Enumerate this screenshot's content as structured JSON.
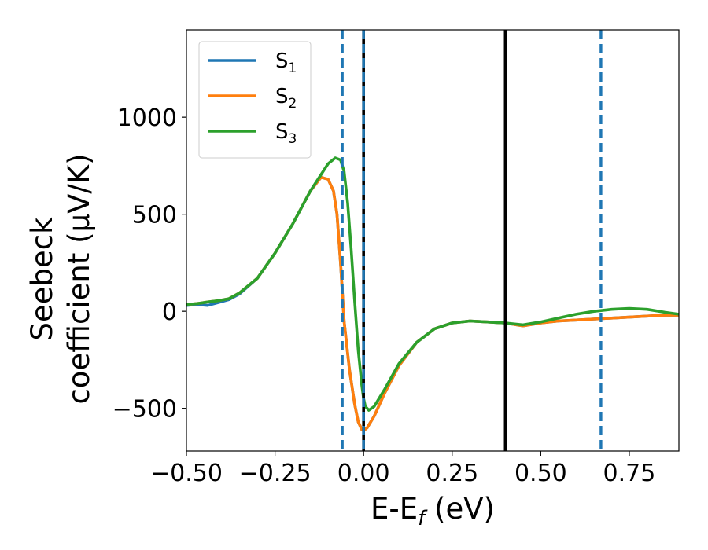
{
  "chart_data": {
    "type": "line",
    "xlabel": "E-E",
    "xlabel_subscript": "f",
    "xlabel_unit": " (eV)",
    "ylabel_line1": "Seebeck",
    "ylabel_line2": "coefficient  (μV/K)",
    "xlim": [
      -0.5,
      0.89
    ],
    "ylim": [
      -720,
      1450
    ],
    "x_ticks": [
      -0.5,
      -0.25,
      0.0,
      0.25,
      0.5,
      0.75
    ],
    "x_tick_labels": [
      "−0.50",
      "−0.25",
      "0.00",
      "0.25",
      "0.50",
      "0.75"
    ],
    "y_ticks": [
      -500,
      0,
      500,
      1000
    ],
    "y_tick_labels": [
      "−500",
      "0",
      "500",
      "1000"
    ],
    "grid": false,
    "legend_position": "top-left",
    "series": [
      {
        "name": "S",
        "subscript": "1",
        "color": "#1f77b4",
        "x": [
          -0.5,
          -0.47,
          -0.44,
          -0.41,
          -0.38,
          -0.35,
          -0.3,
          -0.25,
          -0.2,
          -0.15,
          -0.12,
          -0.1,
          -0.085,
          -0.075,
          -0.065,
          -0.055,
          -0.04,
          -0.025,
          -0.015,
          -0.005,
          0.0,
          0.01,
          0.03,
          0.06,
          0.1,
          0.15,
          0.2,
          0.25,
          0.3,
          0.35,
          0.4,
          0.45,
          0.5,
          0.55,
          0.6,
          0.65,
          0.7,
          0.75,
          0.8,
          0.85,
          0.89
        ],
        "y": [
          30,
          35,
          30,
          45,
          60,
          90,
          170,
          300,
          450,
          620,
          690,
          680,
          620,
          500,
          250,
          -50,
          -300,
          -480,
          -570,
          -610,
          -615,
          -600,
          -540,
          -420,
          -280,
          -160,
          -90,
          -60,
          -50,
          -55,
          -60,
          -75,
          -60,
          -50,
          -45,
          -40,
          -35,
          -30,
          -25,
          -20,
          -20
        ]
      },
      {
        "name": "S",
        "subscript": "2",
        "color": "#ff7f0e",
        "x": [
          -0.5,
          -0.47,
          -0.44,
          -0.41,
          -0.38,
          -0.35,
          -0.3,
          -0.25,
          -0.2,
          -0.15,
          -0.12,
          -0.1,
          -0.085,
          -0.075,
          -0.065,
          -0.055,
          -0.04,
          -0.025,
          -0.015,
          -0.005,
          0.0,
          0.01,
          0.03,
          0.06,
          0.1,
          0.15,
          0.2,
          0.25,
          0.3,
          0.35,
          0.4,
          0.45,
          0.5,
          0.55,
          0.6,
          0.65,
          0.7,
          0.75,
          0.8,
          0.85,
          0.89
        ],
        "y": [
          35,
          40,
          48,
          55,
          65,
          95,
          170,
          300,
          450,
          620,
          690,
          680,
          620,
          500,
          250,
          -50,
          -300,
          -480,
          -570,
          -610,
          -615,
          -600,
          -540,
          -420,
          -280,
          -160,
          -90,
          -60,
          -50,
          -55,
          -60,
          -75,
          -60,
          -50,
          -45,
          -40,
          -35,
          -30,
          -25,
          -20,
          -20
        ]
      },
      {
        "name": "S",
        "subscript": "3",
        "color": "#2ca02c",
        "x": [
          -0.5,
          -0.47,
          -0.44,
          -0.41,
          -0.38,
          -0.35,
          -0.3,
          -0.25,
          -0.2,
          -0.15,
          -0.1,
          -0.08,
          -0.065,
          -0.055,
          -0.045,
          -0.035,
          -0.025,
          -0.015,
          -0.005,
          0.0,
          0.005,
          0.015,
          0.03,
          0.06,
          0.1,
          0.15,
          0.2,
          0.25,
          0.3,
          0.35,
          0.4,
          0.45,
          0.5,
          0.55,
          0.6,
          0.65,
          0.7,
          0.75,
          0.8,
          0.85,
          0.89
        ],
        "y": [
          35,
          40,
          48,
          55,
          65,
          95,
          170,
          300,
          450,
          620,
          760,
          790,
          780,
          720,
          560,
          320,
          50,
          -200,
          -380,
          -450,
          -490,
          -510,
          -490,
          -400,
          -270,
          -160,
          -90,
          -60,
          -50,
          -55,
          -60,
          -70,
          -55,
          -35,
          -15,
          0,
          10,
          15,
          10,
          -5,
          -15
        ]
      }
    ],
    "vlines": [
      {
        "x": -0.06,
        "style": "dashed",
        "color": "#1f77b4"
      },
      {
        "x": 0.0,
        "style": "solid",
        "color": "#000000"
      },
      {
        "x": 0.0,
        "style": "dashed",
        "color": "#1f77b4"
      },
      {
        "x": 0.4,
        "style": "solid",
        "color": "#000000"
      },
      {
        "x": 0.67,
        "style": "dashed",
        "color": "#1f77b4"
      }
    ]
  }
}
